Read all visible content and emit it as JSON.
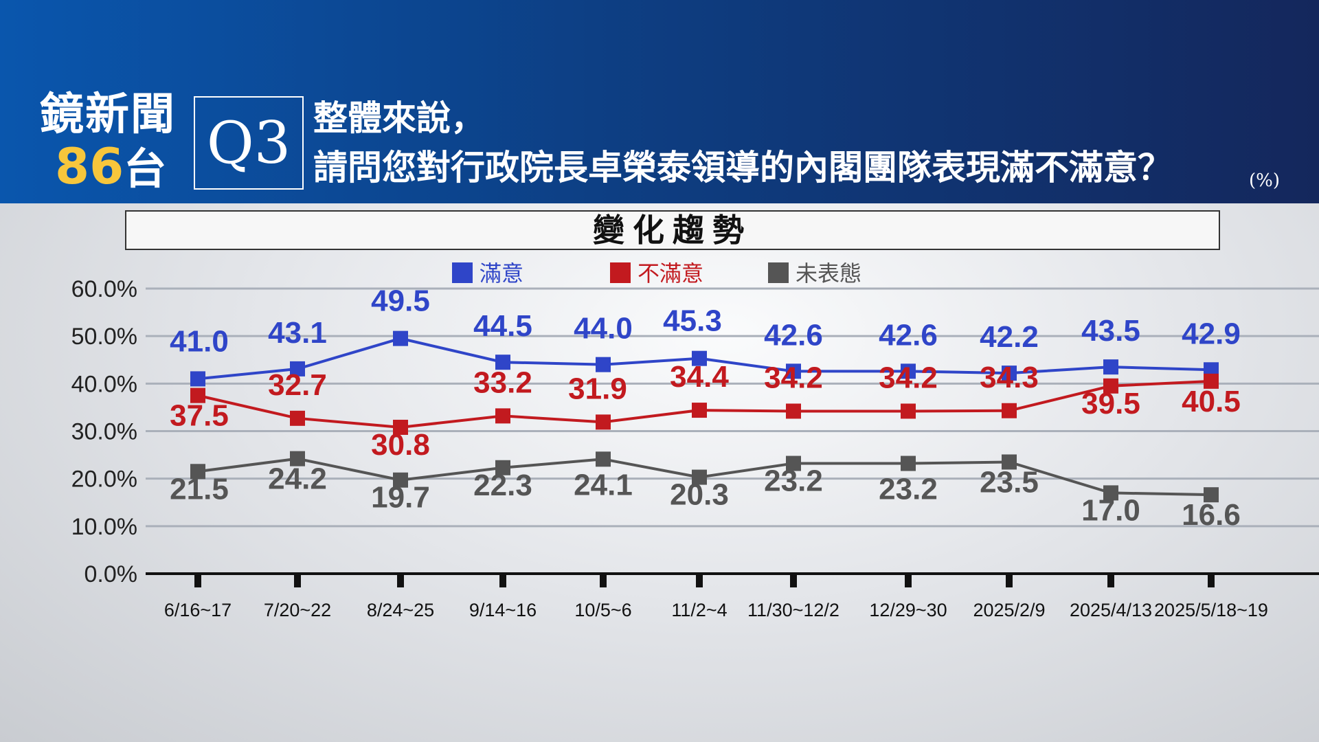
{
  "header": {
    "logo_line1": "鏡新聞",
    "logo_number": "86",
    "logo_suffix": "台",
    "question_number": "Q3",
    "question_line1": "整體來說，",
    "question_line2": "請問您對行政院長卓榮泰領導的內閣團隊表現滿不滿意？",
    "unit": "(%)"
  },
  "section_title": "變化趨勢",
  "chart_data": {
    "type": "line",
    "categories": [
      "6/16~17",
      "7/20~22",
      "8/24~25",
      "9/14~16",
      "10/5~6",
      "11/2~4",
      "11/30~12/2",
      "12/29~30",
      "2025/2/9",
      "2025/4/13",
      "2025/5/18~19"
    ],
    "y_ticks": [
      "60.0%",
      "50.0%",
      "40.0%",
      "30.0%",
      "20.0%",
      "10.0%",
      "0.0%"
    ],
    "ylim": [
      0,
      60
    ],
    "legend_position": "top",
    "series": [
      {
        "name": "滿意",
        "color": "#2f45c8",
        "values": [
          41.0,
          43.1,
          49.5,
          44.5,
          44.0,
          45.3,
          42.6,
          42.6,
          42.2,
          43.5,
          42.9
        ]
      },
      {
        "name": "不滿意",
        "color": "#c21a1f",
        "values": [
          37.5,
          32.7,
          30.8,
          33.2,
          31.9,
          34.4,
          34.2,
          34.2,
          34.3,
          39.5,
          40.5
        ]
      },
      {
        "name": "未表態",
        "color": "#555555",
        "values": [
          21.5,
          24.2,
          19.7,
          22.3,
          24.1,
          20.3,
          23.2,
          23.2,
          23.5,
          17.0,
          16.6
        ]
      }
    ]
  }
}
